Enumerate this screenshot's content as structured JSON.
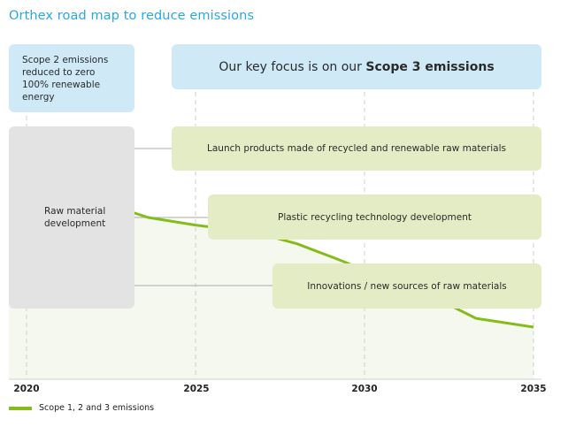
{
  "title": "Orthex road map to reduce emissions",
  "boxes": {
    "scope2": {
      "lines": [
        "Scope 2 emissions",
        "reduced to zero",
        "100% renewable energy"
      ]
    },
    "key_focus": {
      "prefix": "Our key focus is on our ",
      "emphasis": "Scope 3 emissions"
    },
    "raw_material": {
      "lines": [
        "Raw material",
        "development"
      ]
    },
    "initiatives": [
      {
        "label": "Launch products made of recycled and renewable raw materials",
        "start_year": 2025
      },
      {
        "label": "Plastic recycling technology development",
        "start_year": 2026
      },
      {
        "label": "Innovations / new sources of raw materials",
        "start_year": 2027.5
      }
    ]
  },
  "colors": {
    "title": "#2aa8df",
    "blue_box": "#d0e9f7",
    "gray_box": "#e3e3e3",
    "green_box": "#e4ecc6",
    "line": "#84bd1a",
    "area": "#f5f8ee"
  },
  "chart_data": {
    "type": "line",
    "title": "Orthex road map to reduce emissions",
    "xlabel": "",
    "ylabel": "",
    "x_ticks": [
      "2020",
      "2025",
      "2030",
      "2035"
    ],
    "xlim": [
      2020,
      2035
    ],
    "ylim": [
      0,
      100
    ],
    "grid": "vertical dashed at ticks",
    "legend": {
      "position": "bottom-left",
      "entries": [
        "Scope 1, 2 and 3 emissions"
      ]
    },
    "series": [
      {
        "name": "Scope 1, 2 and 3 emissions",
        "x": [
          2020,
          2023.2,
          2023.6,
          2025,
          2026.8,
          2028.0,
          2029.2,
          2030.0,
          2031.0,
          2032.0,
          2033.3,
          2035
        ],
        "y": [
          100,
          100,
          98,
          94.5,
          91,
          86,
          79,
          74,
          68,
          62,
          52,
          48
        ]
      }
    ]
  },
  "legend": {
    "label": "Scope 1, 2 and 3 emissions"
  }
}
